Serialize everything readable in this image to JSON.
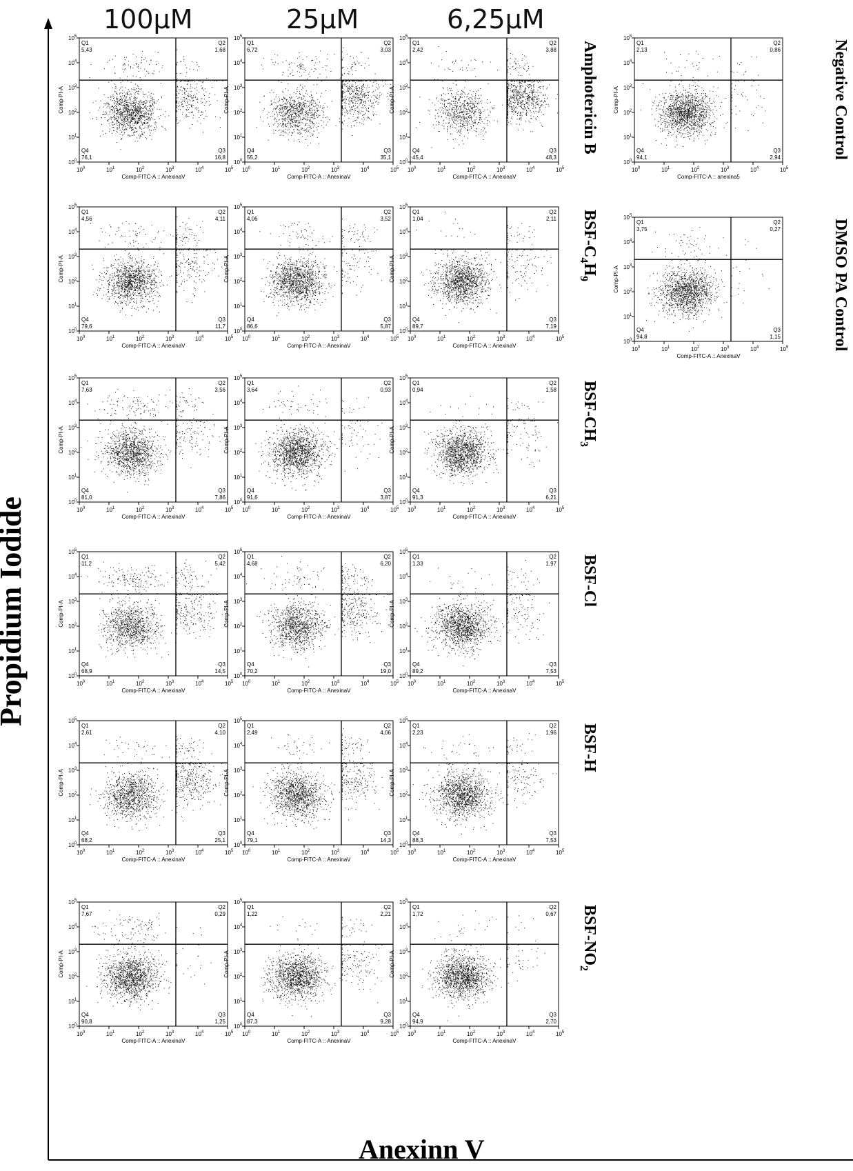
{
  "figure": {
    "x_axis_title": "Anexinn V",
    "y_axis_title": "Propidium Iodide",
    "concentrations": [
      "100μM",
      "25μM",
      "6,25μM"
    ]
  },
  "panel_text": {
    "ylabel": "Comp-PI-A",
    "xlabel": "Comp-FITC-A :: AnexinaV",
    "xlabel_negative_control": "Comp-FITC-A :: anexina5",
    "quadrant_names": [
      "Q1",
      "Q2",
      "Q3",
      "Q4"
    ],
    "tick_labels": [
      "10^0",
      "10^1",
      "10^2",
      "10^3",
      "10^4",
      "10^5"
    ]
  },
  "compounds": [
    {
      "id": "amphotericin",
      "label": "Amphotericin B",
      "sub": ""
    },
    {
      "id": "bsf-c4h9",
      "label": "BSF-C",
      "sub": "4",
      "tail": "H",
      "sub2": "9"
    },
    {
      "id": "bsf-ch3",
      "label": "BSF-CH",
      "sub": "3"
    },
    {
      "id": "bsf-cl",
      "label": "BSF-Cl",
      "sub": ""
    },
    {
      "id": "bsf-h",
      "label": "BSF-H",
      "sub": ""
    },
    {
      "id": "bsf-no2",
      "label": "BSF-NO",
      "sub": "2"
    }
  ],
  "controls": [
    {
      "id": "negative",
      "label": "Negative Control"
    },
    {
      "id": "dmso",
      "label": "DMSO PA Control"
    }
  ],
  "chart_data": {
    "type": "scatter",
    "x_axis": "Comp-FITC-A :: AnexinaV (log scale)",
    "y_axis": "Comp-PI-A (log scale)",
    "xlim": [
      1,
      100000
    ],
    "ylim": [
      1,
      100000
    ],
    "scale": "log",
    "panels": [
      {
        "compound": "Amphotericin B",
        "conc": "100μM",
        "Q1": "5,43",
        "Q2": "1,68",
        "Q3": "16,8",
        "Q4": "76,1"
      },
      {
        "compound": "Amphotericin B",
        "conc": "25μM",
        "Q1": "6,72",
        "Q2": "3,03",
        "Q3": "35,1",
        "Q4": "55,2"
      },
      {
        "compound": "Amphotericin B",
        "conc": "6,25μM",
        "Q1": "2,42",
        "Q2": "3,88",
        "Q3": "48,3",
        "Q4": "45,4"
      },
      {
        "compound": "BSF-C4H9",
        "conc": "100μM",
        "Q1": "4,56",
        "Q2": "4,11",
        "Q3": "11,7",
        "Q4": "79,6"
      },
      {
        "compound": "BSF-C4H9",
        "conc": "25μM",
        "Q1": "4,06",
        "Q2": "3,52",
        "Q3": "5,87",
        "Q4": "86,6"
      },
      {
        "compound": "BSF-C4H9",
        "conc": "6,25μM",
        "Q1": "1,04",
        "Q2": "2,11",
        "Q3": "7,19",
        "Q4": "89,7"
      },
      {
        "compound": "BSF-CH3",
        "conc": "100μM",
        "Q1": "7,63",
        "Q2": "3,56",
        "Q3": "7,86",
        "Q4": "81,0"
      },
      {
        "compound": "BSF-CH3",
        "conc": "25μM",
        "Q1": "3,64",
        "Q2": "0,93",
        "Q3": "3,87",
        "Q4": "91,6"
      },
      {
        "compound": "BSF-CH3",
        "conc": "6,25μM",
        "Q1": "0,94",
        "Q2": "1,58",
        "Q3": "6,21",
        "Q4": "91,3"
      },
      {
        "compound": "BSF-Cl",
        "conc": "100μM",
        "Q1": "11,2",
        "Q2": "5,42",
        "Q3": "14,5",
        "Q4": "68,9"
      },
      {
        "compound": "BSF-Cl",
        "conc": "25μM",
        "Q1": "4,68",
        "Q2": "6,20",
        "Q3": "19,0",
        "Q4": "70,2"
      },
      {
        "compound": "BSF-Cl",
        "conc": "6,25μM",
        "Q1": "1,33",
        "Q2": "1,97",
        "Q3": "7,53",
        "Q4": "89,2"
      },
      {
        "compound": "BSF-H",
        "conc": "100μM",
        "Q1": "2,61",
        "Q2": "4,10",
        "Q3": "25,1",
        "Q4": "68,2"
      },
      {
        "compound": "BSF-H",
        "conc": "25μM",
        "Q1": "2,49",
        "Q2": "4,06",
        "Q3": "14,3",
        "Q4": "79,1"
      },
      {
        "compound": "BSF-H",
        "conc": "6,25μM",
        "Q1": "2,23",
        "Q2": "1,96",
        "Q3": "7,53",
        "Q4": "88,3"
      },
      {
        "compound": "BSF-NO2",
        "conc": "100μM",
        "Q1": "7,67",
        "Q2": "0,29",
        "Q3": "1,25",
        "Q4": "90,8"
      },
      {
        "compound": "BSF-NO2",
        "conc": "25μM",
        "Q1": "1,22",
        "Q2": "2,21",
        "Q3": "9,28",
        "Q4": "87,3"
      },
      {
        "compound": "BSF-NO2",
        "conc": "6,25μM",
        "Q1": "1,72",
        "Q2": "0,67",
        "Q3": "2,70",
        "Q4": "94,9"
      },
      {
        "compound": "Negative Control",
        "conc": "",
        "Q1": "2,13",
        "Q2": "0,86",
        "Q3": "2,94",
        "Q4": "94,1"
      },
      {
        "compound": "DMSO PA Control",
        "conc": "",
        "Q1": "3,75",
        "Q2": "0,27",
        "Q3": "1,15",
        "Q4": "94,8"
      }
    ]
  }
}
